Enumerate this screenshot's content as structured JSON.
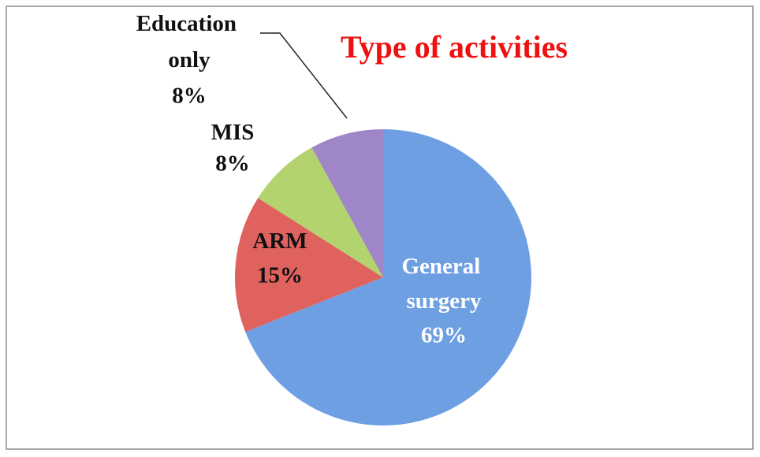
{
  "chart_data": {
    "type": "pie",
    "title": "Type of activities",
    "categories": [
      "General surgery",
      "ARM",
      "MIS",
      "Education only"
    ],
    "values": [
      69,
      15,
      8,
      8
    ],
    "value_labels": [
      "69%",
      "15%",
      "8%",
      "8%"
    ],
    "colors": [
      "#6f9fe3",
      "#e0625f",
      "#b3d36e",
      "#9f86c6"
    ]
  }
}
